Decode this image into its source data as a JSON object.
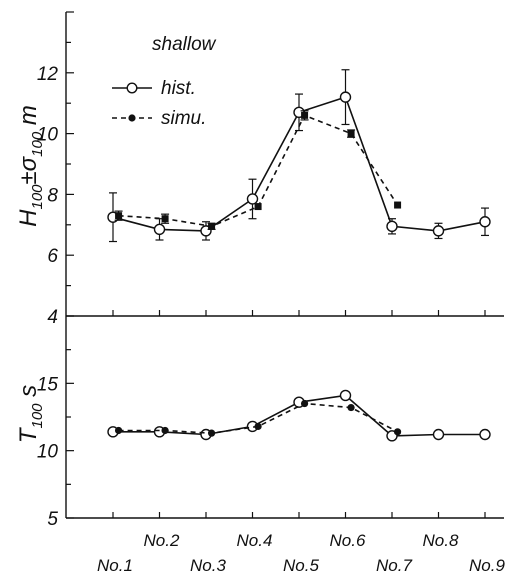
{
  "chart_data": {
    "type": "line",
    "categories": [
      "No.1",
      "No.2",
      "No.3",
      "No.4",
      "No.5",
      "No.6",
      "No.7",
      "No.8",
      "No.9"
    ],
    "legend": {
      "title": "shallow",
      "placement": "top-left",
      "entries": [
        {
          "key": "hist",
          "label": "hist.",
          "marker": "open-circle",
          "line": "solid"
        },
        {
          "key": "simu",
          "label": "simu.",
          "marker": "filled",
          "line": "dashed"
        }
      ]
    },
    "panels": [
      {
        "key": "height",
        "ylabel": {
          "main": "H",
          "sub1": "100",
          "pm": "±σ",
          "sub2": "100",
          "unit": " m"
        },
        "ylim": [
          4,
          14
        ],
        "ytick_labels": [
          "4",
          "6",
          "8",
          "10",
          "12"
        ],
        "series": [
          {
            "key": "hist",
            "x": [
              1,
              2,
              3,
              4,
              5,
              6,
              7,
              8,
              9
            ],
            "values": [
              7.25,
              6.85,
              6.8,
              7.85,
              10.7,
              11.2,
              6.95,
              6.8,
              7.1
            ],
            "errors": [
              0.8,
              0.35,
              0.3,
              0.65,
              0.6,
              0.9,
              0.25,
              0.25,
              0.45
            ]
          },
          {
            "key": "simu",
            "x": [
              1.12,
              2.12,
              3.12,
              4.12,
              5.12,
              6.12,
              7.12
            ],
            "values": [
              7.3,
              7.2,
              6.95,
              7.6,
              10.6,
              10.0,
              7.65
            ],
            "errors": [
              0.15,
              0.15,
              0.1,
              0.0,
              0.15,
              0.12,
              0.0
            ]
          }
        ]
      },
      {
        "key": "period",
        "ylabel": {
          "main": "T",
          "sub1": "100",
          "pm": "",
          "sub2": "",
          "unit": " s"
        },
        "ylim": [
          5,
          20
        ],
        "ytick_labels": [
          "5",
          "10",
          "15"
        ],
        "series": [
          {
            "key": "hist",
            "x": [
              1,
              2,
              3,
              4,
              5,
              6,
              7,
              8,
              9
            ],
            "values": [
              11.4,
              11.4,
              11.2,
              11.8,
              13.6,
              14.1,
              11.1,
              11.2,
              11.2
            ]
          },
          {
            "key": "simu",
            "x": [
              1.12,
              2.12,
              3.12,
              4.12,
              5.12,
              6.12,
              7.12
            ],
            "values": [
              11.5,
              11.5,
              11.3,
              11.8,
              13.5,
              13.2,
              11.4
            ]
          }
        ]
      }
    ]
  }
}
